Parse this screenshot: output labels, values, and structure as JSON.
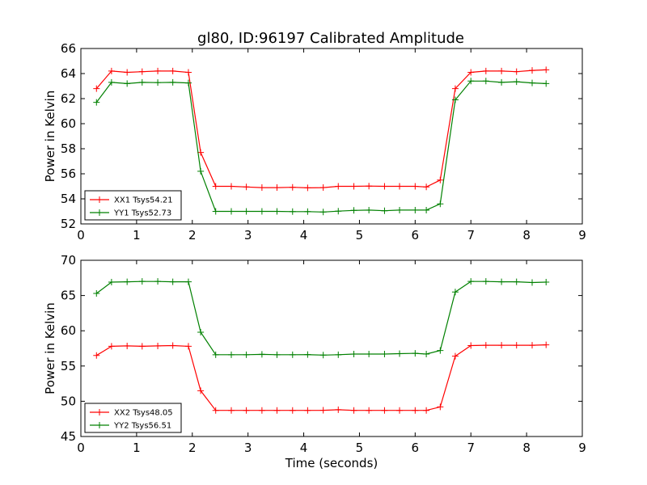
{
  "chart_data": [
    {
      "type": "line",
      "title": "gl80, ID:96197 Calibrated Amplitude",
      "xlabel": "",
      "ylabel": "Power in Kelvin",
      "xlim": [
        0,
        9
      ],
      "ylim": [
        52,
        66
      ],
      "xticks": [
        0,
        1,
        2,
        3,
        4,
        5,
        6,
        7,
        8,
        9
      ],
      "yticks": [
        52,
        54,
        56,
        58,
        60,
        62,
        64,
        66
      ],
      "legend_position": "lower-left",
      "x": [
        0.28,
        0.55,
        0.83,
        1.1,
        1.38,
        1.65,
        1.93,
        2.15,
        2.42,
        2.7,
        2.97,
        3.25,
        3.52,
        3.8,
        4.07,
        4.35,
        4.62,
        4.9,
        5.17,
        5.45,
        5.72,
        6.0,
        6.2,
        6.45,
        6.72,
        7.0,
        7.27,
        7.55,
        7.82,
        8.1,
        8.35
      ],
      "series": [
        {
          "name": "XX1 Tsys54.21",
          "color": "#ff0000",
          "values": [
            62.8,
            64.2,
            64.1,
            64.15,
            64.2,
            64.2,
            64.1,
            57.7,
            55.0,
            55.0,
            54.95,
            54.9,
            54.9,
            54.92,
            54.88,
            54.9,
            55.0,
            55.0,
            55.02,
            55.0,
            55.0,
            55.0,
            54.95,
            55.5,
            62.8,
            64.1,
            64.2,
            64.2,
            64.15,
            64.25,
            64.3
          ]
        },
        {
          "name": "YY1 Tsys52.73",
          "color": "#008000",
          "values": [
            61.7,
            63.3,
            63.2,
            63.3,
            63.28,
            63.3,
            63.25,
            56.2,
            53.0,
            53.0,
            53.0,
            53.0,
            53.0,
            52.98,
            52.98,
            52.95,
            53.02,
            53.08,
            53.1,
            53.05,
            53.1,
            53.1,
            53.1,
            53.6,
            61.9,
            63.4,
            63.4,
            63.3,
            63.35,
            63.25,
            63.2
          ]
        }
      ]
    },
    {
      "type": "line",
      "title": "",
      "xlabel": "Time (seconds)",
      "ylabel": "Power in Kelvin",
      "xlim": [
        0,
        9
      ],
      "ylim": [
        45,
        70
      ],
      "xticks": [
        0,
        1,
        2,
        3,
        4,
        5,
        6,
        7,
        8,
        9
      ],
      "yticks": [
        45,
        50,
        55,
        60,
        65,
        70
      ],
      "legend_position": "lower-left",
      "x": [
        0.28,
        0.55,
        0.83,
        1.1,
        1.38,
        1.65,
        1.93,
        2.15,
        2.42,
        2.7,
        2.97,
        3.25,
        3.52,
        3.8,
        4.07,
        4.35,
        4.62,
        4.9,
        5.17,
        5.45,
        5.72,
        6.0,
        6.2,
        6.45,
        6.72,
        7.0,
        7.27,
        7.55,
        7.82,
        8.1,
        8.35
      ],
      "series": [
        {
          "name": "XX2 Tsys48.05",
          "color": "#ff0000",
          "values": [
            56.5,
            57.8,
            57.85,
            57.8,
            57.85,
            57.9,
            57.8,
            51.5,
            48.7,
            48.7,
            48.7,
            48.7,
            48.7,
            48.7,
            48.7,
            48.72,
            48.8,
            48.7,
            48.7,
            48.7,
            48.7,
            48.7,
            48.7,
            49.2,
            56.4,
            57.9,
            57.95,
            57.95,
            57.95,
            57.95,
            58.0
          ]
        },
        {
          "name": "YY2 Tsys56.51",
          "color": "#008000",
          "values": [
            65.3,
            66.9,
            66.95,
            67.0,
            67.0,
            66.95,
            66.95,
            59.8,
            56.6,
            56.6,
            56.6,
            56.65,
            56.6,
            56.6,
            56.62,
            56.55,
            56.6,
            56.7,
            56.7,
            56.7,
            56.75,
            56.8,
            56.7,
            57.2,
            65.5,
            67.0,
            67.0,
            66.95,
            66.95,
            66.85,
            66.9
          ]
        }
      ]
    }
  ]
}
